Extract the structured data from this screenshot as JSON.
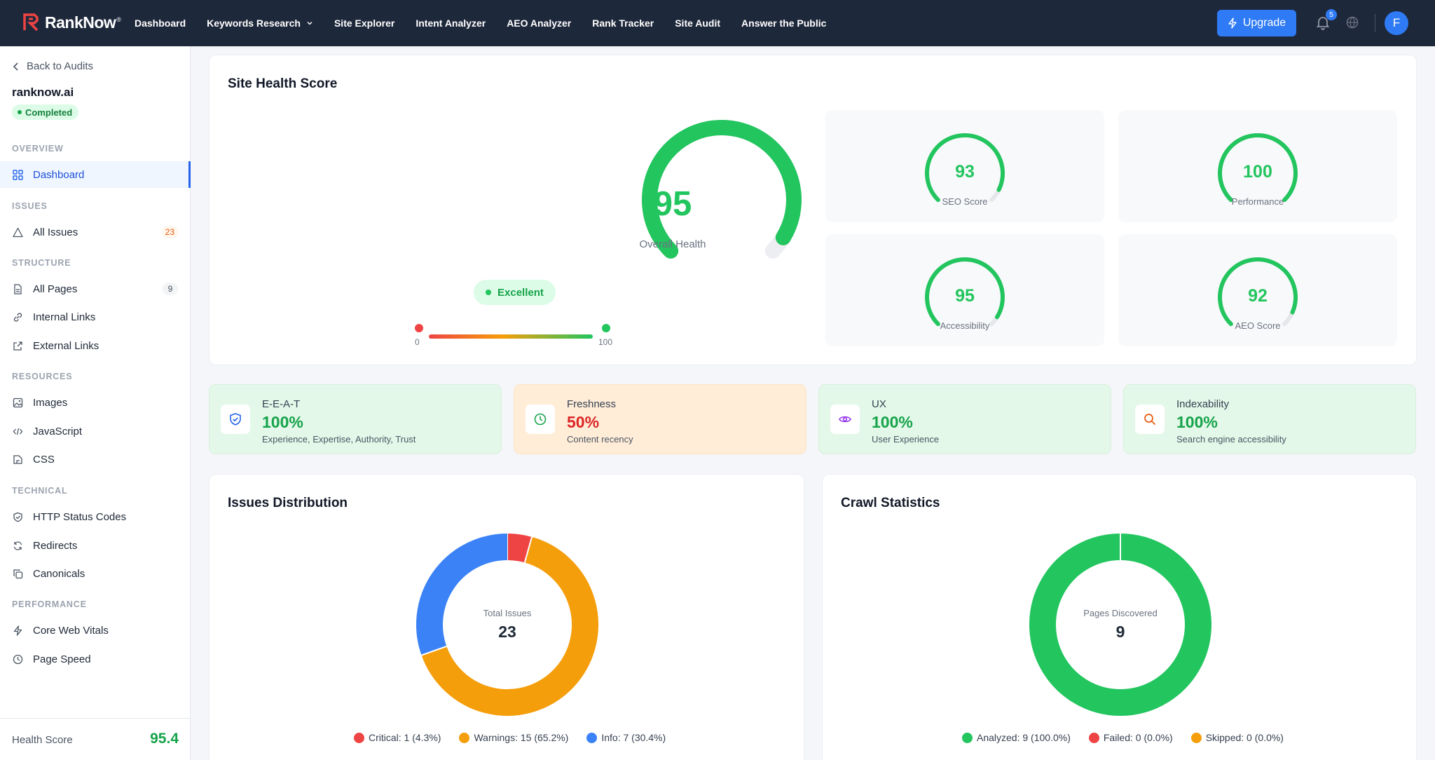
{
  "app": {
    "brand": "RankNow",
    "brand_mark": "®",
    "nav": [
      {
        "label": "Dashboard"
      },
      {
        "label": "Keywords Research"
      },
      {
        "label": "Site Explorer"
      },
      {
        "label": "Intent Analyzer"
      },
      {
        "label": "AEO Analyzer"
      },
      {
        "label": "Rank Tracker"
      },
      {
        "label": "Site Audit"
      },
      {
        "label": "Answer the Public"
      }
    ],
    "upgrade_label": "Upgrade",
    "notification_count": "5",
    "avatar_initial": "F"
  },
  "sidebar": {
    "back_label": "Back to Audits",
    "site": "ranknow.ai",
    "status": "Completed",
    "sections": {
      "overview": "OVERVIEW",
      "issues": "ISSUES",
      "structure": "STRUCTURE",
      "resources": "RESOURCES",
      "technical": "TECHNICAL",
      "performance": "PERFORMANCE"
    },
    "items": {
      "dashboard": "Dashboard",
      "all_issues": "All Issues",
      "all_issues_count": "23",
      "all_pages": "All Pages",
      "all_pages_count": "9",
      "internal_links": "Internal Links",
      "external_links": "External Links",
      "images": "Images",
      "javascript": "JavaScript",
      "css": "CSS",
      "http_status": "HTTP Status Codes",
      "redirects": "Redirects",
      "canonicals": "Canonicals",
      "core_web_vitals": "Core Web Vitals",
      "page_speed": "Page Speed"
    },
    "footer_label": "Health Score",
    "footer_value": "95.4"
  },
  "health": {
    "title": "Site Health Score",
    "overall_value": "95",
    "overall_label": "Overall Health",
    "overall_fraction": 0.95,
    "rating": "Excellent",
    "scale_min": "0",
    "scale_max": "100",
    "sub_scores": [
      {
        "value": "93",
        "label": "SEO Score",
        "fraction": 0.93
      },
      {
        "value": "100",
        "label": "Performance",
        "fraction": 1.0
      },
      {
        "value": "95",
        "label": "Accessibility",
        "fraction": 0.95
      },
      {
        "value": "92",
        "label": "AEO Score",
        "fraction": 0.92
      }
    ]
  },
  "metrics": [
    {
      "title": "E-E-A-T",
      "value": "100%",
      "desc": "Experience, Expertise, Authority, Trust",
      "icon": "shield-check-icon",
      "tone": "green"
    },
    {
      "title": "Freshness",
      "value": "50%",
      "desc": "Content recency",
      "icon": "clock-icon",
      "tone": "orange"
    },
    {
      "title": "UX",
      "value": "100%",
      "desc": "User Experience",
      "icon": "eye-icon",
      "tone": "green"
    },
    {
      "title": "Indexability",
      "value": "100%",
      "desc": "Search engine accessibility",
      "icon": "search-icon",
      "tone": "green"
    }
  ],
  "issues_distribution": {
    "title": "Issues Distribution",
    "center_label": "Total Issues",
    "center_value": "23",
    "legend": [
      {
        "label": "Critical: 1 (4.3%)",
        "color": "#ef4444"
      },
      {
        "label": "Warnings: 15 (65.2%)",
        "color": "#f59e0b"
      },
      {
        "label": "Info: 7 (30.4%)",
        "color": "#3b82f6"
      }
    ]
  },
  "crawl_statistics": {
    "title": "Crawl Statistics",
    "center_label": "Pages Discovered",
    "center_value": "9",
    "legend": [
      {
        "label": "Analyzed: 9 (100.0%)",
        "color": "#22c55e"
      },
      {
        "label": "Failed: 0 (0.0%)",
        "color": "#ef4444"
      },
      {
        "label": "Skipped: 0 (0.0%)",
        "color": "#f59e0b"
      }
    ]
  },
  "chart_data": [
    {
      "type": "pie",
      "title": "Issues Distribution",
      "categories": [
        "Critical",
        "Warnings",
        "Info"
      ],
      "values": [
        1,
        15,
        7
      ],
      "colors": [
        "#ef4444",
        "#f59e0b",
        "#3b82f6"
      ],
      "total": 23
    },
    {
      "type": "pie",
      "title": "Crawl Statistics",
      "categories": [
        "Analyzed",
        "Failed",
        "Skipped"
      ],
      "values": [
        9,
        0,
        0
      ],
      "colors": [
        "#22c55e",
        "#ef4444",
        "#f59e0b"
      ],
      "total": 9
    }
  ],
  "colors": {
    "nav_bg": "#1e283b",
    "accent": "#2f7bf5",
    "good": "#22c55e",
    "warn": "#f59e0b",
    "bad": "#ef4444"
  }
}
